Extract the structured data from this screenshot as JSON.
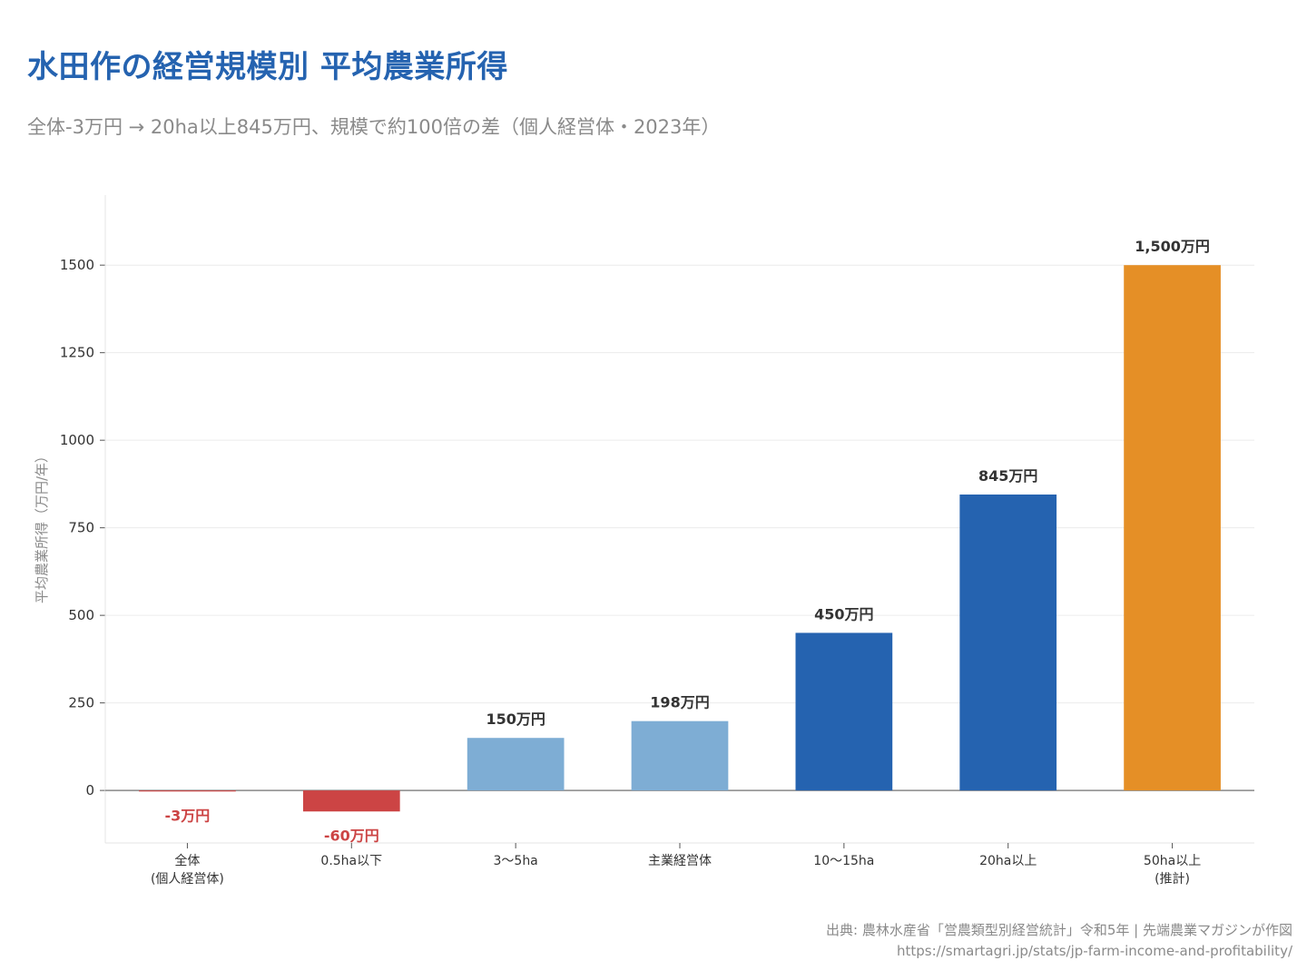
{
  "title": "水田作の経営規模別 平均農業所得",
  "subtitle": "全体-3万円 → 20ha以上845万円、規模で約100倍の差（個人経営体・2023年）",
  "source": "出典: 農林水産省「営農類型別経営統計」令和5年 | 先端農業マガジンが作図",
  "url": "https://smartagri.jp/stats/jp-farm-income-and-profitability/",
  "colors": {
    "title": "#2563b0",
    "negative": "#cc4444",
    "light_blue": "#7eadd4",
    "dark_blue": "#2563b0",
    "orange": "#e58f26",
    "label_dark": "#333333",
    "label_negative": "#cc4444"
  },
  "chart_data": {
    "type": "bar",
    "ylabel": "平均農業所得（万円/年）",
    "xlabel": "",
    "ylim": [
      -150,
      1700
    ],
    "yticks": [
      0,
      250,
      500,
      750,
      1000,
      1250,
      1500
    ],
    "grid": true,
    "categories": [
      [
        "全体",
        "(個人経営体)"
      ],
      [
        "0.5ha以下"
      ],
      [
        "3〜5ha"
      ],
      [
        "主業経営体"
      ],
      [
        "10〜15ha"
      ],
      [
        "20ha以上"
      ],
      [
        "50ha以上",
        "(推計)"
      ]
    ],
    "values": [
      -3,
      -60,
      150,
      198,
      450,
      845,
      1500
    ],
    "value_labels": [
      "-3万円",
      "-60万円",
      "150万円",
      "198万円",
      "450万円",
      "845万円",
      "1,500万円"
    ],
    "bar_colors": [
      "#cc4444",
      "#cc4444",
      "#7eadd4",
      "#7eadd4",
      "#2563b0",
      "#2563b0",
      "#e58f26"
    ]
  }
}
